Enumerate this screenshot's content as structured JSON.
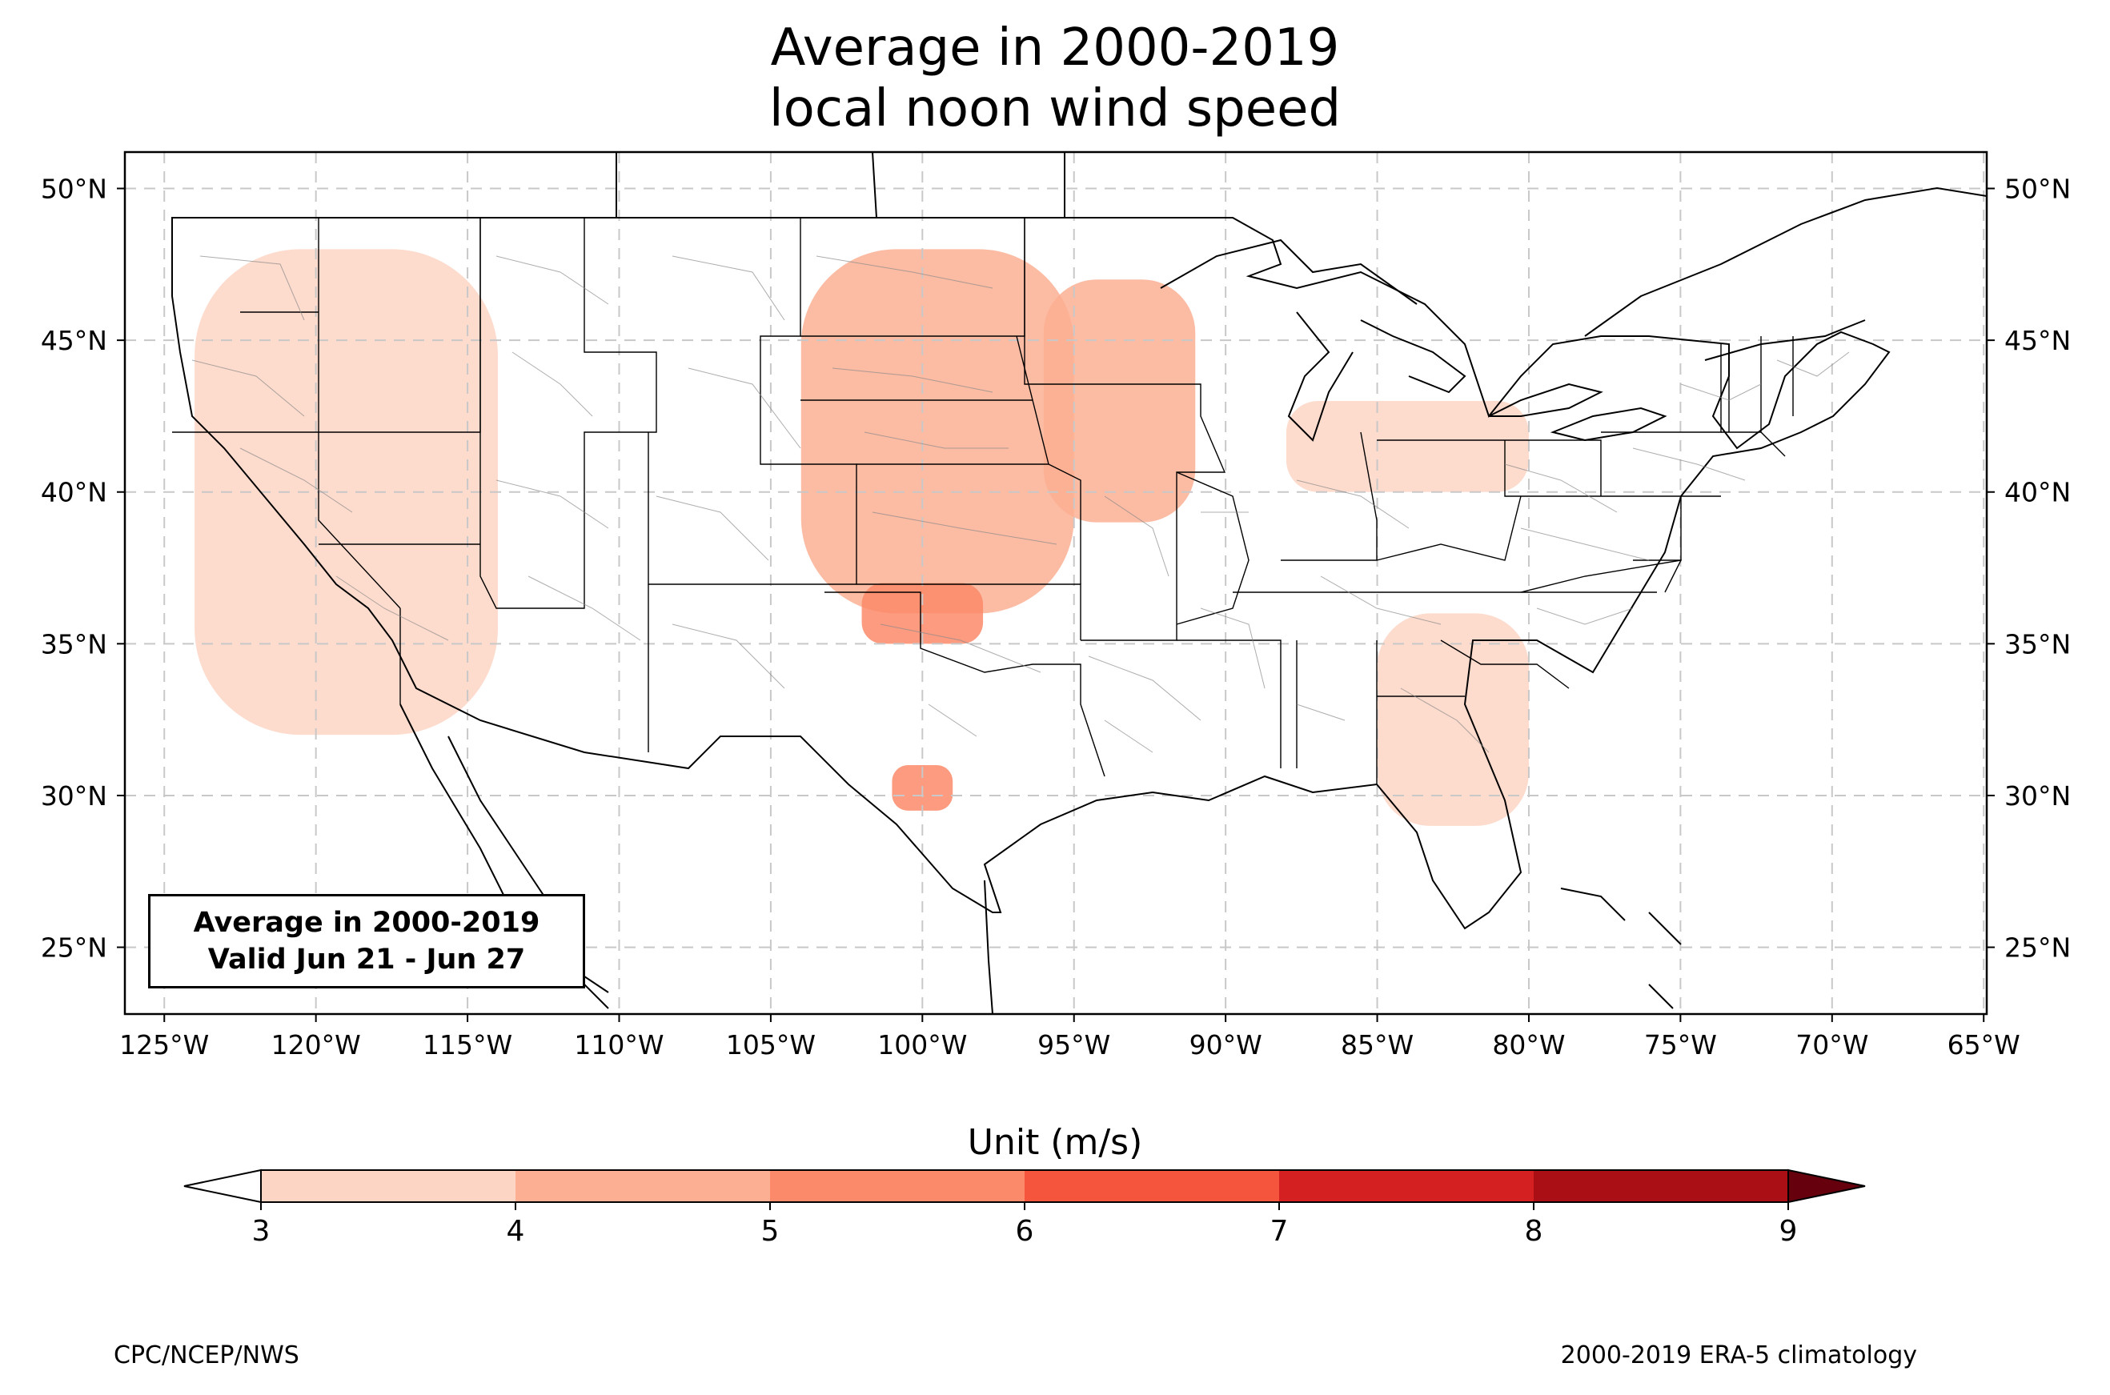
{
  "title": {
    "line1": "Average in 2000-2019",
    "line2": "local noon wind speed"
  },
  "info_box": {
    "line1": "Average in 2000-2019",
    "line2": "Valid Jun 21 - Jun 27"
  },
  "axes": {
    "lon_ticks": [
      "125°W",
      "120°W",
      "115°W",
      "110°W",
      "105°W",
      "100°W",
      "95°W",
      "90°W",
      "85°W",
      "80°W",
      "75°W",
      "70°W",
      "65°W"
    ],
    "lat_ticks": [
      "50°N",
      "45°N",
      "40°N",
      "35°N",
      "30°N",
      "25°N"
    ],
    "lon_range": [
      -126.3,
      -64.9
    ],
    "lat_range": [
      22.8,
      51.2
    ],
    "grid": true
  },
  "colorbar": {
    "label": "Unit (m/s)",
    "ticks": [
      "3",
      "4",
      "5",
      "6",
      "7",
      "8",
      "9"
    ],
    "colors": [
      "#fdd5c4",
      "#fcaf93",
      "#fb8a6a",
      "#f5553c",
      "#d42020",
      "#a90f15"
    ],
    "under_color": "#ffffff",
    "over_color": "#67000d",
    "extend": "both"
  },
  "chart_data": {
    "type": "map",
    "variable": "local noon wind speed",
    "units": "m/s",
    "period": "2000-2019",
    "valid": "Jun 21 - Jun 27",
    "levels": [
      3,
      4,
      5,
      6,
      7,
      8,
      9
    ],
    "regions": [
      {
        "lon": [
          -104,
          -95
        ],
        "lat": [
          36,
          48
        ],
        "value": 4.5
      },
      {
        "lon": [
          -102,
          -98
        ],
        "lat": [
          35,
          37
        ],
        "value": 5.2
      },
      {
        "lon": [
          -101,
          -99
        ],
        "lat": [
          29.5,
          31
        ],
        "value": 5.1
      },
      {
        "lon": [
          -96,
          -91
        ],
        "lat": [
          39,
          47
        ],
        "value": 4.2
      },
      {
        "lon": [
          -88,
          -80
        ],
        "lat": [
          40,
          43
        ],
        "value": 3.8
      },
      {
        "lon": [
          -85,
          -80
        ],
        "lat": [
          29,
          36
        ],
        "value": 3.2
      },
      {
        "lon": [
          -124,
          -114
        ],
        "lat": [
          32,
          48
        ],
        "value": 3.3
      }
    ]
  },
  "footer": {
    "left": "CPC/NCEP/NWS",
    "right": "2000-2019 ERA-5 climatology"
  }
}
